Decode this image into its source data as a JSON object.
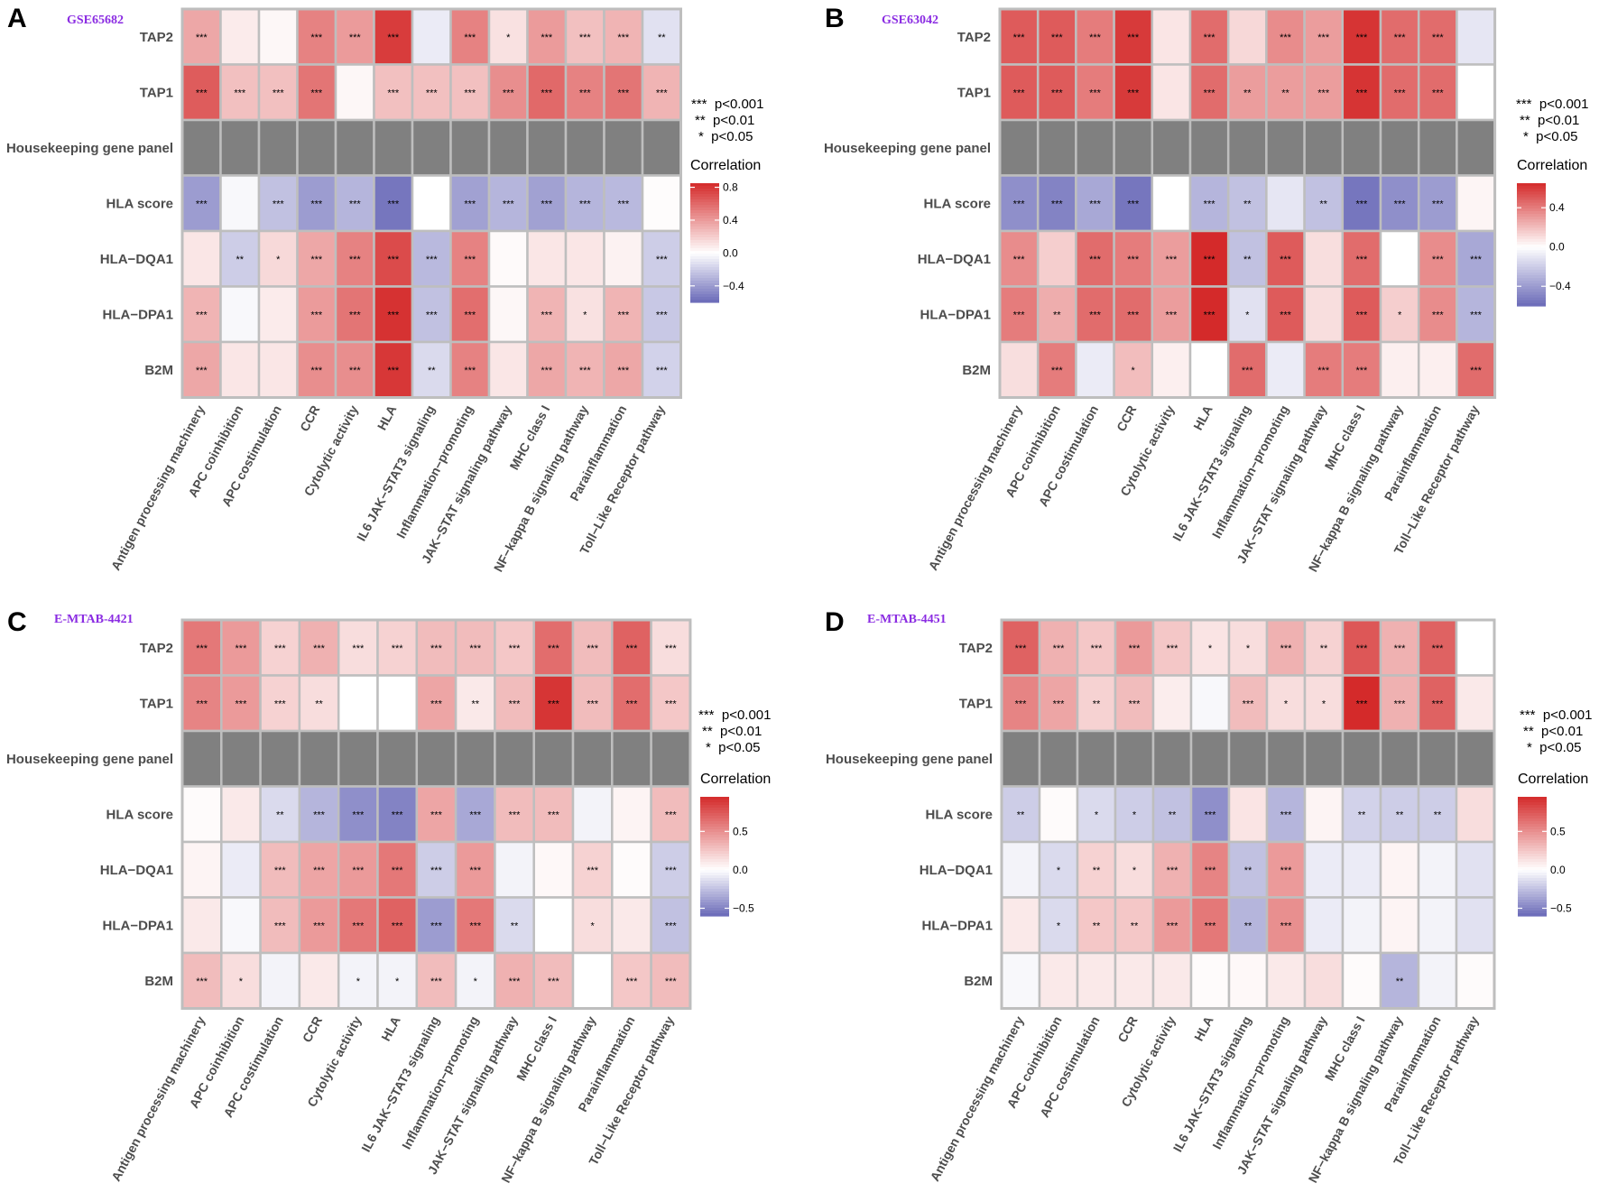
{
  "figure": {
    "rows": [
      "TAP2",
      "TAP1",
      "Housekeeping gene panel",
      "HLA score",
      "HLA−DQA1",
      "HLA−DPA1",
      "B2M"
    ],
    "columns": [
      "Antigen processing machinery",
      "APC coinhibition",
      "APC costimulation",
      "CCR",
      "Cytolytic activity",
      "HLA",
      "IL6 JAK−STAT3 signaling",
      "Inflammation−promoting",
      "JAK−STAT signaling pathway",
      "MHC class I",
      "NF−kappa B signaling pathway",
      "Parainflammation",
      "Toll−Like Receptor pathway"
    ],
    "significance_legend": [
      "***  p<0.001",
      "**  p<0.01",
      "*  p<0.05"
    ],
    "legend_title": "Correlation",
    "colors": {
      "low": "#6a6ab8",
      "mid": "#ffffff",
      "high": "#d42a2a",
      "na": "#808080",
      "grid": "#bebebe"
    }
  },
  "chart_data": [
    {
      "type": "heatmap",
      "panel": "A",
      "dataset": "GSE65682",
      "limits": [
        -0.6,
        0.85
      ],
      "legend_ticks": [
        "0.8",
        "0.4",
        "0.0",
        "−0.4"
      ],
      "legend_tick_values": [
        0.8,
        0.4,
        0.0,
        -0.4
      ],
      "values": [
        [
          0.35,
          0.08,
          0.03,
          0.5,
          0.4,
          0.78,
          -0.08,
          0.5,
          0.12,
          0.4,
          0.25,
          0.3,
          -0.12
        ],
        [
          0.65,
          0.25,
          0.25,
          0.55,
          0.03,
          0.25,
          0.25,
          0.25,
          0.45,
          0.6,
          0.5,
          0.55,
          0.3
        ],
        [
          null,
          null,
          null,
          null,
          null,
          null,
          null,
          null,
          null,
          null,
          null,
          null,
          null
        ],
        [
          -0.4,
          -0.03,
          -0.25,
          -0.4,
          -0.3,
          -0.55,
          0.0,
          -0.38,
          -0.3,
          -0.38,
          -0.3,
          -0.28,
          0.01
        ],
        [
          0.1,
          -0.2,
          0.15,
          0.35,
          0.5,
          0.72,
          -0.28,
          0.5,
          0.02,
          0.1,
          0.1,
          0.05,
          -0.2
        ],
        [
          0.3,
          -0.03,
          0.08,
          0.4,
          0.55,
          0.82,
          -0.25,
          0.58,
          0.03,
          0.3,
          0.12,
          0.3,
          -0.22
        ],
        [
          0.35,
          0.1,
          0.1,
          0.45,
          0.45,
          0.8,
          -0.15,
          0.5,
          0.1,
          0.35,
          0.3,
          0.35,
          -0.18
        ]
      ],
      "stars": [
        [
          "***",
          "",
          "",
          "***",
          "***",
          "***",
          "",
          "***",
          "*",
          "***",
          "***",
          "***",
          "**"
        ],
        [
          "***",
          "***",
          "***",
          "***",
          "",
          "***",
          "***",
          "***",
          "***",
          "***",
          "***",
          "***",
          "***"
        ],
        [
          "",
          "",
          "",
          "",
          "",
          "",
          "",
          "",
          "",
          "",
          "",
          "",
          ""
        ],
        [
          "***",
          "",
          "***",
          "***",
          "***",
          "***",
          "",
          "***",
          "***",
          "***",
          "***",
          "***",
          ""
        ],
        [
          "",
          "**",
          "*",
          "***",
          "***",
          "***",
          "***",
          "***",
          "",
          "",
          "",
          "",
          "***"
        ],
        [
          "***",
          "",
          "",
          "***",
          "***",
          "***",
          "***",
          "***",
          "",
          "***",
          "*",
          "***",
          "***"
        ],
        [
          "***",
          "",
          "",
          "***",
          "***",
          "***",
          "**",
          "***",
          "",
          "***",
          "***",
          "***",
          "***"
        ]
      ]
    },
    {
      "type": "heatmap",
      "panel": "B",
      "dataset": "GSE63042",
      "limits": [
        -0.6,
        0.65
      ],
      "legend_ticks": [
        "0.4",
        "0.0",
        "−0.4"
      ],
      "legend_tick_values": [
        0.4,
        0.0,
        -0.4
      ],
      "values": [
        [
          0.5,
          0.5,
          0.4,
          0.6,
          0.08,
          0.45,
          0.12,
          0.35,
          0.3,
          0.62,
          0.45,
          0.45,
          -0.1
        ],
        [
          0.5,
          0.5,
          0.4,
          0.6,
          0.08,
          0.45,
          0.3,
          0.3,
          0.3,
          0.62,
          0.45,
          0.45,
          0.0
        ],
        [
          null,
          null,
          null,
          null,
          null,
          null,
          null,
          null,
          null,
          null,
          null,
          null,
          null
        ],
        [
          -0.45,
          -0.5,
          -0.35,
          -0.55,
          0.0,
          -0.3,
          -0.25,
          -0.1,
          -0.25,
          -0.55,
          -0.45,
          -0.4,
          0.03
        ],
        [
          0.35,
          0.15,
          0.45,
          0.4,
          0.3,
          0.65,
          -0.25,
          0.5,
          0.1,
          0.45,
          0.0,
          0.35,
          -0.35
        ],
        [
          0.4,
          0.25,
          0.45,
          0.45,
          0.3,
          0.65,
          -0.12,
          0.5,
          0.1,
          0.5,
          0.15,
          0.35,
          -0.3
        ],
        [
          0.1,
          0.4,
          -0.08,
          0.2,
          0.05,
          0.0,
          0.45,
          -0.08,
          0.4,
          0.4,
          0.05,
          0.05,
          0.45
        ]
      ],
      "stars": [
        [
          "***",
          "***",
          "***",
          "***",
          "",
          "***",
          "",
          "***",
          "***",
          "***",
          "***",
          "***",
          ""
        ],
        [
          "***",
          "***",
          "***",
          "***",
          "",
          "***",
          "**",
          "**",
          "***",
          "***",
          "***",
          "***",
          ""
        ],
        [
          "",
          "",
          "",
          "",
          "",
          "",
          "",
          "",
          "",
          "",
          "",
          "",
          ""
        ],
        [
          "***",
          "***",
          "***",
          "***",
          "",
          "***",
          "**",
          "",
          "**",
          "***",
          "***",
          "***",
          ""
        ],
        [
          "***",
          "",
          "***",
          "***",
          "***",
          "***",
          "**",
          "***",
          "",
          "***",
          "",
          "***",
          "***"
        ],
        [
          "***",
          "**",
          "***",
          "***",
          "***",
          "***",
          "*",
          "***",
          "",
          "***",
          "*",
          "***",
          "***"
        ],
        [
          "",
          "***",
          "",
          "*",
          "",
          "",
          "***",
          "",
          "***",
          "***",
          "",
          "",
          "***"
        ]
      ]
    },
    {
      "type": "heatmap",
      "panel": "C",
      "dataset": "E-MTAB-4421",
      "limits": [
        -0.6,
        0.95
      ],
      "legend_ticks": [
        "0.5",
        "0.0",
        "−0.5"
      ],
      "legend_tick_values": [
        0.5,
        0.0,
        -0.5
      ],
      "values": [
        [
          0.6,
          0.45,
          0.2,
          0.35,
          0.15,
          0.2,
          0.3,
          0.3,
          0.25,
          0.65,
          0.3,
          0.7,
          0.15
        ],
        [
          0.55,
          0.45,
          0.2,
          0.15,
          0.0,
          0.0,
          0.4,
          0.1,
          0.3,
          0.9,
          0.3,
          0.65,
          0.25
        ],
        [
          null,
          null,
          null,
          null,
          null,
          null,
          null,
          null,
          null,
          null,
          null,
          null,
          null
        ],
        [
          0.02,
          0.1,
          -0.15,
          -0.3,
          -0.45,
          -0.5,
          0.4,
          -0.35,
          0.3,
          0.3,
          -0.05,
          0.05,
          0.3
        ],
        [
          0.05,
          -0.08,
          0.3,
          0.4,
          0.45,
          0.6,
          -0.2,
          0.45,
          -0.05,
          0.03,
          0.2,
          0.02,
          -0.2
        ],
        [
          0.1,
          -0.03,
          0.3,
          0.45,
          0.6,
          0.7,
          -0.4,
          0.6,
          -0.15,
          0.0,
          0.15,
          0.1,
          -0.25
        ],
        [
          0.3,
          0.15,
          -0.05,
          0.1,
          -0.05,
          -0.05,
          0.3,
          -0.05,
          0.35,
          0.3,
          0.0,
          0.25,
          0.3
        ]
      ],
      "stars": [
        [
          "***",
          "***",
          "***",
          "***",
          "***",
          "***",
          "***",
          "***",
          "***",
          "***",
          "***",
          "***",
          "***"
        ],
        [
          "***",
          "***",
          "***",
          "**",
          "",
          "",
          "***",
          "**",
          "***",
          "***",
          "***",
          "***",
          "***"
        ],
        [
          "",
          "",
          "",
          "",
          "",
          "",
          "",
          "",
          "",
          "",
          "",
          "",
          ""
        ],
        [
          "",
          "",
          "**",
          "***",
          "***",
          "***",
          "***",
          "***",
          "***",
          "***",
          "",
          "",
          "***"
        ],
        [
          "",
          "",
          "***",
          "***",
          "***",
          "***",
          "***",
          "***",
          "",
          "",
          "***",
          "",
          "***"
        ],
        [
          "",
          "",
          "***",
          "***",
          "***",
          "***",
          "***",
          "***",
          "**",
          "",
          "*",
          "",
          "***"
        ],
        [
          "***",
          "*",
          "",
          "",
          "*",
          "*",
          "***",
          "*",
          "***",
          "***",
          "",
          "***",
          "***"
        ]
      ]
    },
    {
      "type": "heatmap",
      "panel": "D",
      "dataset": "E-MTAB-4451",
      "limits": [
        -0.6,
        0.95
      ],
      "legend_ticks": [
        "0.5",
        "0.0",
        "−0.5"
      ],
      "legend_tick_values": [
        0.5,
        0.0,
        -0.5
      ],
      "values": [
        [
          0.7,
          0.35,
          0.25,
          0.45,
          0.25,
          0.12,
          0.15,
          0.35,
          0.2,
          0.75,
          0.35,
          0.7,
          0.0
        ],
        [
          0.55,
          0.4,
          0.2,
          0.3,
          0.08,
          -0.03,
          0.3,
          0.15,
          0.15,
          0.95,
          0.35,
          0.7,
          0.1
        ],
        [
          null,
          null,
          null,
          null,
          null,
          null,
          null,
          null,
          null,
          null,
          null,
          null,
          null
        ],
        [
          -0.2,
          0.02,
          -0.15,
          -0.2,
          -0.25,
          -0.45,
          0.12,
          -0.3,
          0.05,
          -0.18,
          -0.2,
          -0.2,
          0.15
        ],
        [
          -0.05,
          -0.15,
          0.2,
          0.15,
          0.35,
          0.55,
          -0.25,
          0.45,
          -0.08,
          -0.08,
          0.05,
          -0.05,
          -0.12
        ],
        [
          0.1,
          -0.15,
          0.25,
          0.25,
          0.45,
          0.6,
          -0.3,
          0.5,
          -0.08,
          -0.05,
          0.05,
          -0.05,
          -0.12
        ],
        [
          -0.03,
          0.1,
          0.1,
          0.1,
          0.1,
          0.02,
          0.03,
          0.1,
          0.15,
          0.02,
          -0.3,
          -0.05,
          0.02
        ]
      ],
      "stars": [
        [
          "***",
          "***",
          "***",
          "***",
          "***",
          "*",
          "*",
          "***",
          "**",
          "***",
          "***",
          "***",
          ""
        ],
        [
          "***",
          "***",
          "**",
          "***",
          "",
          "",
          "***",
          "*",
          "*",
          "***",
          "***",
          "***",
          ""
        ],
        [
          "",
          "",
          "",
          "",
          "",
          "",
          "",
          "",
          "",
          "",
          "",
          "",
          ""
        ],
        [
          "**",
          "",
          "*",
          "*",
          "**",
          "***",
          "",
          "***",
          "",
          "**",
          "**",
          "**",
          ""
        ],
        [
          "",
          "*",
          "**",
          "*",
          "***",
          "***",
          "**",
          "***",
          "",
          "",
          "",
          "",
          ""
        ],
        [
          "",
          "*",
          "**",
          "**",
          "***",
          "***",
          "**",
          "***",
          "",
          "",
          "",
          "",
          ""
        ],
        [
          "",
          "",
          "",
          "",
          "",
          "",
          "",
          "",
          "",
          "",
          "**",
          "",
          ""
        ]
      ]
    }
  ]
}
